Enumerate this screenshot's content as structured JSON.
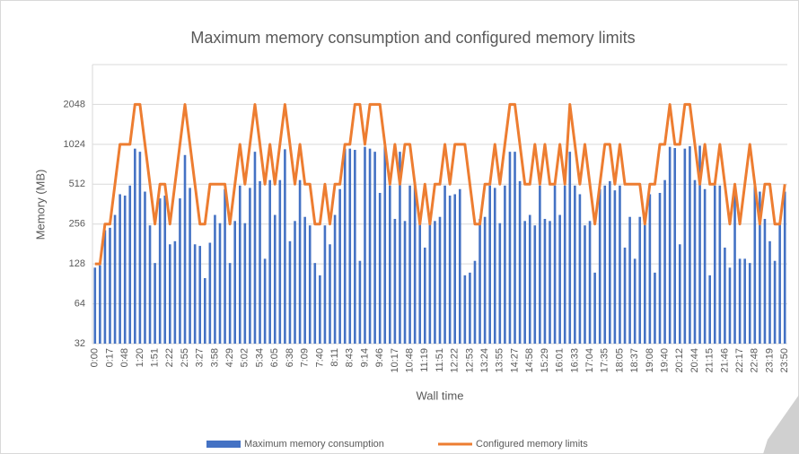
{
  "chart_data": {
    "type": "bar_line",
    "title": "Maximum memory consumption and configured memory limits",
    "x_label": "Wall time",
    "y_label": "Memory (MB)",
    "log_scale": true,
    "log_base": 2,
    "grid": true,
    "legend": "bottom",
    "ylim": [
      32,
      4096
    ],
    "yticks": [
      32,
      64,
      128,
      256,
      512,
      1024,
      2048
    ],
    "categories": [
      "0:00",
      null,
      null,
      "0:17",
      null,
      null,
      "0:48",
      null,
      null,
      "1:20",
      null,
      null,
      "1:51",
      null,
      null,
      "2:22",
      null,
      null,
      "2:55",
      null,
      null,
      "3:27",
      null,
      null,
      "3:58",
      null,
      null,
      "4:29",
      null,
      null,
      "5:02",
      null,
      null,
      "5:34",
      null,
      null,
      "6:05",
      null,
      null,
      "6:38",
      null,
      null,
      "7:09",
      null,
      null,
      "7:40",
      null,
      null,
      "8:11",
      null,
      null,
      "8:43",
      null,
      null,
      "9:14",
      null,
      null,
      "9:46",
      null,
      null,
      "10:17",
      null,
      null,
      "10:48",
      null,
      null,
      "11:19",
      null,
      null,
      "11:51",
      null,
      null,
      "12:22",
      null,
      null,
      "12:53",
      null,
      null,
      "13:24",
      null,
      null,
      "13:55",
      null,
      null,
      "14:27",
      null,
      null,
      "14:58",
      null,
      null,
      "15:29",
      null,
      null,
      "16:01",
      null,
      null,
      "16:33",
      null,
      null,
      "17:04",
      null,
      null,
      "17:35",
      null,
      null,
      "18:05",
      null,
      null,
      "18:37",
      null,
      null,
      "19:08",
      null,
      null,
      "19:40",
      null,
      null,
      "20:12",
      null,
      null,
      "20:44",
      null,
      null,
      "21:15",
      null,
      null,
      "21:46",
      null,
      null,
      "22:17",
      null,
      null,
      "22:48",
      null,
      null,
      "23:19",
      null,
      null,
      "23:50"
    ],
    "series": [
      {
        "name": "Maximum memory consumption",
        "type": "bar",
        "color": "#4472c4",
        "values": [
          120,
          125,
          230,
          240,
          300,
          430,
          420,
          500,
          950,
          900,
          450,
          250,
          130,
          400,
          420,
          180,
          190,
          400,
          850,
          480,
          180,
          175,
          100,
          185,
          300,
          260,
          470,
          130,
          270,
          500,
          260,
          480,
          900,
          540,
          140,
          550,
          300,
          550,
          940,
          190,
          270,
          550,
          290,
          250,
          130,
          105,
          250,
          180,
          300,
          470,
          950,
          950,
          930,
          135,
          980,
          950,
          900,
          440,
          990,
          500,
          280,
          900,
          270,
          500,
          530,
          270,
          170,
          280,
          270,
          290,
          500,
          420,
          430,
          470,
          105,
          110,
          135,
          280,
          290,
          500,
          480,
          260,
          500,
          900,
          900,
          540,
          270,
          300,
          250,
          500,
          280,
          270,
          500,
          300,
          500,
          900,
          500,
          430,
          250,
          270,
          110,
          470,
          500,
          540,
          460,
          500,
          170,
          290,
          140,
          290,
          260,
          430,
          110,
          440,
          550,
          980,
          960,
          180,
          950,
          990,
          550,
          1000,
          470,
          105,
          500,
          500,
          170,
          120,
          450,
          140,
          140,
          130,
          500,
          450,
          280,
          190,
          135,
          260,
          450
        ]
      },
      {
        "name": "Configured memory limits",
        "type": "line",
        "color": "#ed7d31",
        "values": [
          128,
          128,
          256,
          256,
          512,
          1024,
          1024,
          1024,
          2048,
          2048,
          1024,
          512,
          256,
          512,
          512,
          256,
          512,
          1024,
          2048,
          1024,
          512,
          256,
          256,
          512,
          512,
          512,
          512,
          256,
          512,
          1024,
          512,
          1024,
          2048,
          1024,
          512,
          1024,
          512,
          1024,
          2048,
          1024,
          512,
          1024,
          512,
          512,
          256,
          256,
          512,
          256,
          512,
          512,
          1024,
          1024,
          2048,
          2048,
          1024,
          2048,
          2048,
          2048,
          1024,
          512,
          1024,
          512,
          1024,
          1024,
          512,
          256,
          512,
          256,
          512,
          512,
          1024,
          512,
          1024,
          1024,
          1024,
          512,
          256,
          256,
          512,
          512,
          1024,
          512,
          1024,
          2048,
          2048,
          1024,
          512,
          512,
          1024,
          512,
          1024,
          512,
          512,
          1024,
          512,
          2048,
          1024,
          512,
          1024,
          512,
          256,
          512,
          1024,
          1024,
          512,
          1024,
          512,
          512,
          512,
          512,
          256,
          512,
          512,
          1024,
          1024,
          2048,
          1024,
          1024,
          2048,
          2048,
          1024,
          512,
          1024,
          512,
          512,
          1024,
          512,
          256,
          512,
          256,
          512,
          1024,
          512,
          256,
          512,
          512,
          256,
          256,
          512
        ]
      }
    ]
  }
}
